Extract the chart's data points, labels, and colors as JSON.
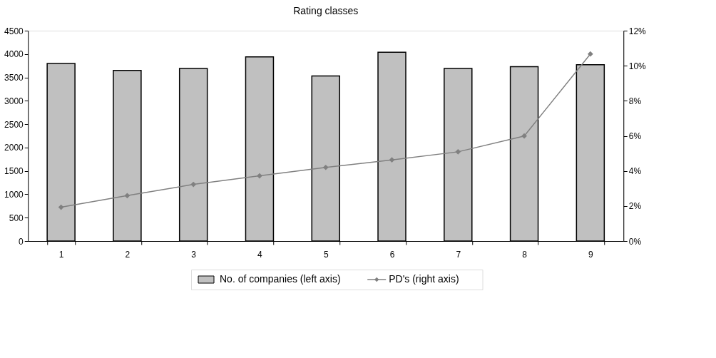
{
  "chart_data": {
    "type": "bar",
    "title": "Rating classes",
    "categories": [
      "1",
      "2",
      "3",
      "4",
      "5",
      "6",
      "7",
      "8",
      "9"
    ],
    "series": [
      {
        "name": "No. of companies (left axis)",
        "color": "#c0c0c0",
        "values": [
          3800,
          3650,
          3690,
          3940,
          3530,
          4040,
          3690,
          3730,
          3770
        ]
      },
      {
        "name": "PD's (right axis)",
        "type": "line",
        "axis": "y2",
        "color": "#808080",
        "values": [
          1.93,
          2.59,
          3.23,
          3.72,
          4.2,
          4.63,
          5.09,
          5.99,
          10.67
        ]
      }
    ],
    "ylim": [
      0,
      4500
    ],
    "yticks": [
      0,
      500,
      1000,
      1500,
      2000,
      2500,
      3000,
      3500,
      4000,
      4500
    ],
    "y2lim": [
      0,
      12
    ],
    "y2ticks": [
      {
        "value": 0,
        "label": "0%"
      },
      {
        "value": 2,
        "label": "2%"
      },
      {
        "value": 4,
        "label": "4%"
      },
      {
        "value": 6,
        "label": "6%"
      },
      {
        "value": 8,
        "label": "8%"
      },
      {
        "value": 10,
        "label": "10%"
      },
      {
        "value": 12,
        "label": "12%"
      }
    ],
    "grid": false,
    "legend": "bottom",
    "marker": "diamond",
    "line_style": "solid"
  }
}
